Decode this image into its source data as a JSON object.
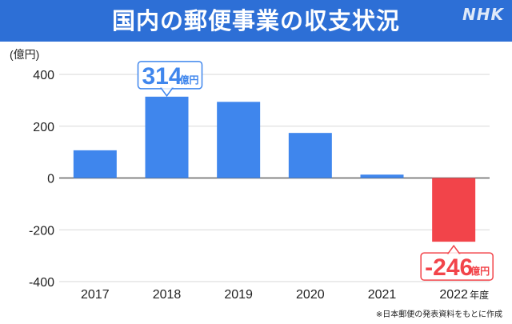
{
  "header": {
    "title": "国内の郵便事業の収支状況",
    "logo": "NHK"
  },
  "unit_label": "(億円)",
  "x_suffix": "年度",
  "source_note": "※日本郵便の発表資料をもとに作成",
  "chart_data": {
    "type": "bar",
    "title": "国内の郵便事業の収支状況",
    "ylabel": "(億円)",
    "categories": [
      "2017",
      "2018",
      "2019",
      "2020",
      "2021",
      "2022"
    ],
    "values": [
      107,
      314,
      294,
      174,
      13,
      -246
    ],
    "ylim": [
      -400,
      400
    ],
    "yticks": [
      400,
      200,
      0,
      -200,
      -400
    ],
    "grid": true,
    "colors": {
      "positive": "#3f86ed",
      "negative": "#f2444a"
    },
    "callouts": [
      {
        "index": 1,
        "value": "314",
        "unit": "億円",
        "color": "#3f86ed"
      },
      {
        "index": 5,
        "value": "-246",
        "unit": "億円",
        "color": "#f2444a"
      }
    ]
  }
}
